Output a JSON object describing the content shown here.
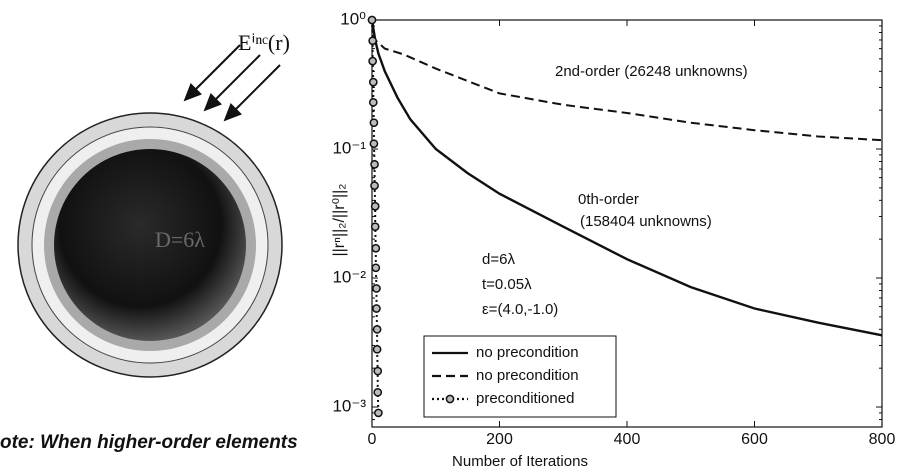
{
  "diagram": {
    "field_label": "Eⁱⁿᶜ(r)",
    "sphere_label": "D=6λ",
    "note": "ote: When higher-order elements"
  },
  "chart_data": {
    "type": "line",
    "xlabel": "Number of Iterations",
    "ylabel": "||rⁿ||₂/||r⁰||₂",
    "xlim": [
      0,
      800
    ],
    "xticks": [
      0,
      200,
      400,
      600,
      800
    ],
    "ylim": [
      0.0007,
      1
    ],
    "log_y": true,
    "yticks": [
      {
        "value": 1,
        "label": "10⁰"
      },
      {
        "value": 0.1,
        "label": "10⁻¹"
      },
      {
        "value": 0.01,
        "label": "10⁻²"
      },
      {
        "value": 0.001,
        "label": "10⁻³"
      }
    ],
    "annotations": [
      "2nd-order (26248 unknowns)",
      "0th-order",
      "(158404 unknowns)",
      "d=6λ",
      "t=0.05λ",
      "ε=(4.0,-1.0)"
    ],
    "legend": "lower left",
    "series": [
      {
        "name": "no precondition",
        "color": "#111111",
        "style": "solid",
        "x": [
          0,
          5,
          10,
          20,
          40,
          60,
          100,
          150,
          200,
          300,
          400,
          500,
          600,
          700,
          800
        ],
        "values": [
          1,
          0.7,
          0.55,
          0.4,
          0.25,
          0.17,
          0.1,
          0.065,
          0.045,
          0.025,
          0.014,
          0.0085,
          0.0058,
          0.0045,
          0.0036
        ]
      },
      {
        "name": "no precondition",
        "color": "#111111",
        "style": "dashed",
        "x": [
          0,
          5,
          20,
          50,
          100,
          200,
          300,
          400,
          500,
          600,
          700,
          800
        ],
        "values": [
          1,
          0.7,
          0.6,
          0.54,
          0.42,
          0.27,
          0.22,
          0.19,
          0.16,
          0.14,
          0.125,
          0.117
        ]
      },
      {
        "name": "preconditioned",
        "color": "#111111",
        "style": "dotted-circles",
        "x": [
          0,
          1,
          1,
          2,
          2,
          3,
          3,
          4,
          4,
          5,
          5,
          6,
          6,
          7,
          7,
          8,
          8,
          9,
          9,
          10
        ],
        "values": [
          1,
          0.69,
          0.48,
          0.33,
          0.23,
          0.16,
          0.11,
          0.076,
          0.052,
          0.036,
          0.025,
          0.017,
          0.012,
          0.0083,
          0.0058,
          0.004,
          0.0028,
          0.0019,
          0.0013,
          0.0009
        ]
      }
    ]
  }
}
